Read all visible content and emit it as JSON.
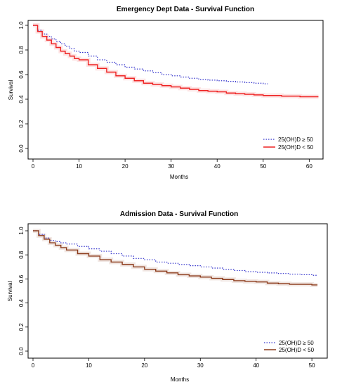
{
  "chart_data": [
    {
      "type": "line",
      "title": "Emergency Dept Data - Survival Function",
      "xlabel": "Months",
      "ylabel": "Survival",
      "xlim": [
        0,
        63
      ],
      "ylim": [
        0,
        1.0
      ],
      "xticks": [
        0,
        10,
        20,
        30,
        40,
        50,
        60
      ],
      "yticks": [
        0.0,
        0.2,
        0.4,
        0.6,
        0.8,
        1.0
      ],
      "legend_position": "bottom-right",
      "series": [
        {
          "name": "25(OH)D ≥ 50",
          "color": "#3333cc",
          "style": "dotted",
          "x": [
            0,
            1,
            2,
            3,
            4,
            5,
            6,
            7,
            8,
            9,
            10,
            12,
            14,
            16,
            18,
            20,
            22,
            24,
            26,
            28,
            30,
            32,
            34,
            36,
            38,
            40,
            42,
            44,
            46,
            48,
            50,
            51
          ],
          "y": [
            1.0,
            0.96,
            0.93,
            0.91,
            0.89,
            0.87,
            0.85,
            0.83,
            0.81,
            0.79,
            0.78,
            0.75,
            0.72,
            0.7,
            0.68,
            0.66,
            0.645,
            0.63,
            0.615,
            0.6,
            0.59,
            0.58,
            0.57,
            0.56,
            0.555,
            0.55,
            0.545,
            0.54,
            0.535,
            0.53,
            0.525,
            0.525
          ]
        },
        {
          "name": "25(OH)D < 50",
          "color": "#ee2222",
          "style": "solid",
          "x": [
            0,
            1,
            2,
            3,
            4,
            5,
            6,
            7,
            8,
            9,
            10,
            12,
            14,
            16,
            18,
            20,
            22,
            24,
            26,
            28,
            30,
            32,
            34,
            36,
            38,
            40,
            42,
            44,
            46,
            48,
            50,
            52,
            54,
            56,
            58,
            60,
            62
          ],
          "y": [
            1.0,
            0.95,
            0.91,
            0.88,
            0.85,
            0.82,
            0.79,
            0.77,
            0.75,
            0.73,
            0.72,
            0.68,
            0.65,
            0.62,
            0.59,
            0.57,
            0.55,
            0.53,
            0.52,
            0.51,
            0.5,
            0.49,
            0.48,
            0.47,
            0.465,
            0.46,
            0.45,
            0.445,
            0.44,
            0.435,
            0.43,
            0.43,
            0.425,
            0.425,
            0.42,
            0.42,
            0.42
          ]
        }
      ]
    },
    {
      "type": "line",
      "title": "Admission Data - Survival Function",
      "xlabel": "Months",
      "ylabel": "Survival",
      "xlim": [
        0,
        52
      ],
      "ylim": [
        0,
        1.0
      ],
      "xticks": [
        0,
        10,
        20,
        30,
        40,
        50
      ],
      "yticks": [
        0.0,
        0.2,
        0.4,
        0.6,
        0.8,
        1.0
      ],
      "legend_position": "bottom-right",
      "series": [
        {
          "name": "25(OH)D ≥ 50",
          "color": "#3333cc",
          "style": "dotted",
          "x": [
            0,
            1,
            2,
            3,
            4,
            5,
            6,
            8,
            10,
            12,
            14,
            16,
            18,
            20,
            22,
            24,
            26,
            28,
            30,
            32,
            34,
            36,
            38,
            40,
            42,
            44,
            46,
            48,
            50,
            51
          ],
          "y": [
            1.0,
            0.97,
            0.94,
            0.92,
            0.91,
            0.9,
            0.89,
            0.87,
            0.85,
            0.83,
            0.81,
            0.79,
            0.77,
            0.76,
            0.74,
            0.73,
            0.72,
            0.71,
            0.7,
            0.69,
            0.68,
            0.67,
            0.66,
            0.655,
            0.65,
            0.645,
            0.64,
            0.635,
            0.63,
            0.63
          ]
        },
        {
          "name": "25(OH)D < 50",
          "color": "#8b3a1a",
          "style": "solid",
          "x": [
            0,
            1,
            2,
            3,
            4,
            5,
            6,
            8,
            10,
            12,
            14,
            16,
            18,
            20,
            22,
            24,
            26,
            28,
            30,
            32,
            34,
            36,
            38,
            40,
            42,
            44,
            46,
            48,
            50,
            51
          ],
          "y": [
            1.0,
            0.96,
            0.93,
            0.9,
            0.88,
            0.86,
            0.84,
            0.81,
            0.79,
            0.76,
            0.74,
            0.72,
            0.7,
            0.68,
            0.665,
            0.65,
            0.635,
            0.625,
            0.615,
            0.605,
            0.595,
            0.585,
            0.58,
            0.575,
            0.565,
            0.56,
            0.555,
            0.555,
            0.55,
            0.55
          ]
        }
      ]
    }
  ]
}
